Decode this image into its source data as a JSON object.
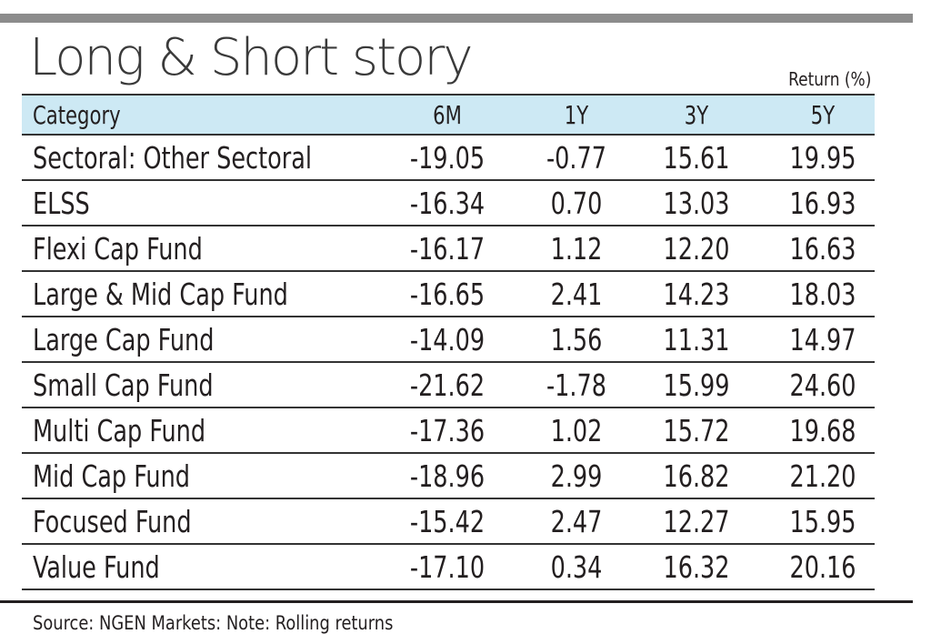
{
  "title": "Long & Short story",
  "unit_note": "Return (%)",
  "table": {
    "headers": [
      "Category",
      "6M",
      "1Y",
      "3Y",
      "5Y"
    ],
    "rows": [
      [
        "Sectoral: Other Sectoral",
        "-19.05",
        "-0.77",
        "15.61",
        "19.95"
      ],
      [
        "ELSS",
        "-16.34",
        "0.70",
        "13.03",
        "16.93"
      ],
      [
        "Flexi Cap Fund",
        "-16.17",
        "1.12",
        "12.20",
        "16.63"
      ],
      [
        "Large & Mid Cap Fund",
        "-16.65",
        "2.41",
        "14.23",
        "18.03"
      ],
      [
        "Large Cap Fund",
        "-14.09",
        "1.56",
        "11.31",
        "14.97"
      ],
      [
        "Small Cap Fund",
        "-21.62",
        "-1.78",
        "15.99",
        "24.60"
      ],
      [
        "Multi Cap Fund",
        "-17.36",
        "1.02",
        "15.72",
        "19.68"
      ],
      [
        "Mid Cap Fund",
        "-18.96",
        "2.99",
        "16.82",
        "21.20"
      ],
      [
        "Focused Fund",
        "-15.42",
        "2.47",
        "12.27",
        "15.95"
      ],
      [
        "Value Fund",
        "-17.10",
        "0.34",
        "16.32",
        "20.16"
      ]
    ]
  },
  "source": "Source: NGEN Markets: Note: Rolling returns",
  "colors": {
    "header_background": "#cde9f4",
    "top_rule": "#8c8c8c",
    "text": "#231f20"
  }
}
